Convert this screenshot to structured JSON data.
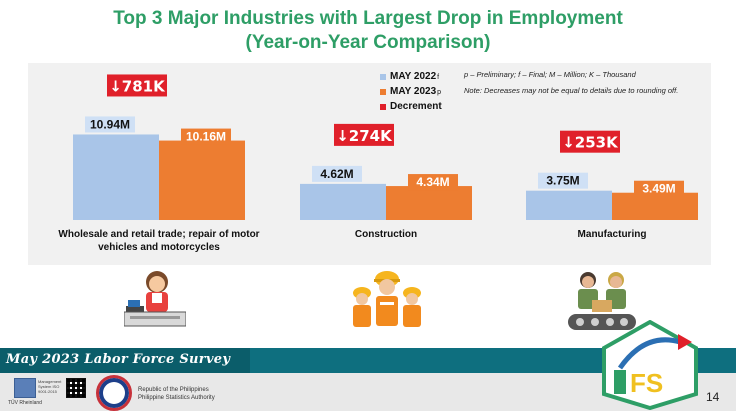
{
  "page": {
    "title_line1": "Top 3 Major Industries with Largest Drop in Employment",
    "title_line2": "(Year-on-Year Comparison)",
    "page_number": "14"
  },
  "colors": {
    "may2022": "#a9c5e8",
    "may2023": "#ed7d31",
    "decrement": "#e0202a",
    "title": "#2e9e66",
    "footer_bar": "#0e6f7f"
  },
  "legend": {
    "items": [
      {
        "label": "MAY 2022",
        "sup": "f",
        "color": "#a9c5e8"
      },
      {
        "label": "MAY 2023",
        "sup": "p",
        "color": "#ed7d31"
      },
      {
        "label": "Decrement",
        "sup": "",
        "color": "#e0202a"
      }
    ]
  },
  "notes": {
    "line1": "p – Preliminary; f – Final; M – Million; K – Thousand",
    "line2": "Note: Decreases may not be equal to details due to rounding off."
  },
  "chart_data": {
    "type": "bar",
    "categories": [
      "Wholesale and retail trade; repair of motor vehicles and motorcycles",
      "Construction",
      "Manufacturing"
    ],
    "category_lines": [
      [
        "Wholesale and retail trade; repair of motor",
        "vehicles and motorcycles"
      ],
      [
        "Construction"
      ],
      [
        "Manufacturing"
      ]
    ],
    "series": [
      {
        "name": "MAY 2022",
        "values": [
          10.94,
          4.62,
          3.75
        ],
        "labels": [
          "10.94M",
          "4.62M",
          "3.75M"
        ]
      },
      {
        "name": "MAY 2023",
        "values": [
          10.16,
          4.34,
          3.49
        ],
        "labels": [
          "10.16M",
          "4.34M",
          "3.49M"
        ]
      }
    ],
    "decrement": {
      "name": "Decrement",
      "labels": [
        "781K",
        "274K",
        "253K"
      ],
      "values": [
        781,
        274,
        253
      ]
    },
    "units": "Million",
    "ylim": [
      0,
      11
    ],
    "grid": false,
    "legend_position": "top-right"
  },
  "footer": {
    "survey_title": "May 2023 Labor Force Survey",
    "agency_line1": "Republic of the Philippines",
    "agency_line2": "Philippine Statistics Authority",
    "cert_text": "TÜV Rheinland",
    "cert_list": "Management System ISO 9001:2015"
  },
  "icons": {
    "cashier": "cashier-icon",
    "construction_workers": "construction-workers-icon",
    "factory_workers": "factory-workers-icon"
  }
}
